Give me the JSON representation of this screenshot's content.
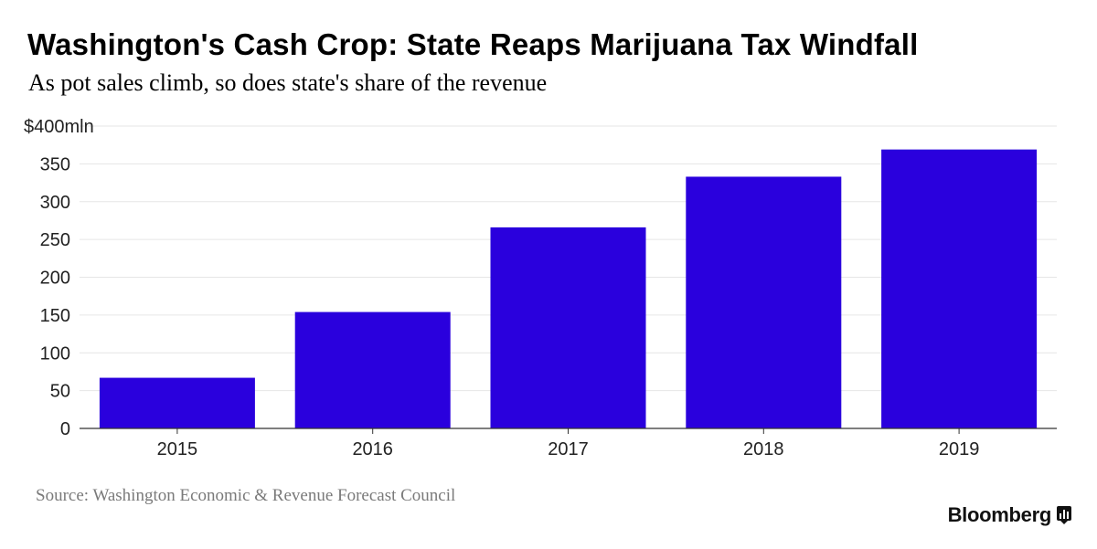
{
  "header": {
    "title": "Washington's Cash Crop: State Reaps Marijuana Tax Windfall",
    "subtitle": "As pot sales climb, so does state's share of the revenue"
  },
  "footer": {
    "source": "Source: Washington Economic & Revenue Forecast Council",
    "brand": "Bloomberg"
  },
  "colors": {
    "bar": "#2a00dd",
    "grid": "#e6e6e6",
    "axis": "#333333"
  },
  "chart_data": {
    "type": "bar",
    "title": "Washington's Cash Crop: State Reaps Marijuana Tax Windfall",
    "subtitle": "As pot sales climb, so does state's share of the revenue",
    "categories": [
      "2015",
      "2016",
      "2017",
      "2018",
      "2019"
    ],
    "values": [
      67,
      154,
      266,
      333,
      369
    ],
    "ylim": [
      0,
      400
    ],
    "yticks": [
      0,
      50,
      100,
      150,
      200,
      250,
      300,
      350,
      400
    ],
    "ytick_labels": [
      "0",
      "50",
      "100",
      "150",
      "200",
      "250",
      "300",
      "350",
      "$400mln"
    ],
    "xlabel": "",
    "ylabel": "",
    "grid": true,
    "legend": "none"
  }
}
